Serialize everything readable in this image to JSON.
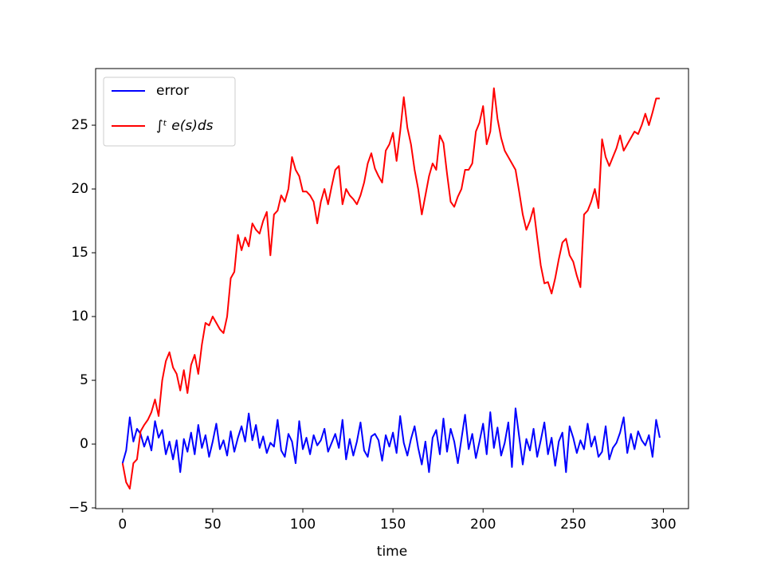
{
  "chart_data": {
    "type": "line",
    "xlabel": "time",
    "x": [
      0,
      2,
      4,
      6,
      8,
      10,
      12,
      14,
      16,
      18,
      20,
      22,
      24,
      26,
      28,
      30,
      32,
      34,
      36,
      38,
      40,
      42,
      44,
      46,
      48,
      50,
      52,
      54,
      56,
      58,
      60,
      62,
      64,
      66,
      68,
      70,
      72,
      74,
      76,
      78,
      80,
      82,
      84,
      86,
      88,
      90,
      92,
      94,
      96,
      98,
      100,
      102,
      104,
      106,
      108,
      110,
      112,
      114,
      116,
      118,
      120,
      122,
      124,
      126,
      128,
      130,
      132,
      134,
      136,
      138,
      140,
      142,
      144,
      146,
      148,
      150,
      152,
      154,
      156,
      158,
      160,
      162,
      164,
      166,
      168,
      170,
      172,
      174,
      176,
      178,
      180,
      182,
      184,
      186,
      188,
      190,
      192,
      194,
      196,
      198,
      200,
      202,
      204,
      206,
      208,
      210,
      212,
      214,
      216,
      218,
      220,
      222,
      224,
      226,
      228,
      230,
      232,
      234,
      236,
      238,
      240,
      242,
      244,
      246,
      248,
      250,
      252,
      254,
      256,
      258,
      260,
      262,
      264,
      266,
      268,
      270,
      272,
      274,
      276,
      278,
      280,
      282,
      284,
      286,
      288,
      290,
      292,
      294,
      296,
      298
    ],
    "series": [
      {
        "name": "error",
        "color": "#0000ff",
        "values": [
          -1.5,
          -0.5,
          2.1,
          0.2,
          1.2,
          0.8,
          -0.2,
          0.6,
          -0.5,
          1.8,
          0.5,
          1.1,
          -0.8,
          0.2,
          -1.2,
          0.3,
          -2.2,
          0.4,
          -0.6,
          0.9,
          -0.8,
          1.5,
          -0.3,
          0.7,
          -1.0,
          0.2,
          1.6,
          -0.4,
          0.3,
          -0.9,
          1.0,
          -0.6,
          0.5,
          1.4,
          0.2,
          2.4,
          0.3,
          1.5,
          -0.3,
          0.6,
          -0.7,
          0.1,
          -0.2,
          1.9,
          -0.5,
          -1.0,
          0.8,
          0.2,
          -1.5,
          1.8,
          -0.4,
          0.5,
          -0.8,
          0.7,
          -0.1,
          0.3,
          1.2,
          -0.6,
          0.1,
          0.8,
          -0.3,
          1.9,
          -1.2,
          0.4,
          -0.9,
          0.2,
          1.7,
          -0.5,
          -1.0,
          0.6,
          0.8,
          0.3,
          -1.3,
          0.7,
          -0.2,
          0.9,
          -0.7,
          2.2,
          0.1,
          -0.9,
          0.4,
          1.4,
          -0.3,
          -1.6,
          0.2,
          -2.2,
          0.5,
          1.1,
          -0.8,
          2.0,
          -0.6,
          1.2,
          0.2,
          -1.5,
          0.4,
          2.3,
          -0.4,
          0.8,
          -1.1,
          0.2,
          1.6,
          -0.8,
          2.5,
          -0.3,
          1.3,
          -0.9,
          0.1,
          1.7,
          -1.8,
          2.8,
          0.6,
          -1.6,
          0.4,
          -0.5,
          1.2,
          -1.0,
          0.3,
          1.7,
          -0.8,
          0.5,
          -1.7,
          0.2,
          0.9,
          -2.2,
          1.4,
          0.5,
          -0.7,
          0.3,
          -0.4,
          1.6,
          -0.2,
          0.6,
          -1.0,
          -0.6,
          1.4,
          -1.2,
          -0.3,
          0.1,
          0.9,
          2.1,
          -0.7,
          0.8,
          -0.4,
          1.0,
          0.3,
          -0.1,
          0.7,
          -1.0,
          1.9,
          0.5
        ]
      },
      {
        "name": "∫ᵗ e(s)ds",
        "color": "#ff0000",
        "values": [
          -1.5,
          -3.0,
          -3.5,
          -1.5,
          -1.2,
          1.0,
          1.5,
          1.9,
          2.5,
          3.5,
          2.2,
          5.0,
          6.5,
          7.2,
          6.0,
          5.5,
          4.2,
          5.8,
          4.0,
          6.2,
          7.0,
          5.5,
          7.8,
          9.5,
          9.3,
          10.0,
          9.5,
          9.0,
          8.7,
          10.0,
          13.0,
          13.5,
          16.4,
          15.2,
          16.2,
          15.5,
          17.3,
          16.8,
          16.5,
          17.5,
          18.2,
          14.8,
          18.0,
          18.3,
          19.5,
          19.0,
          20.0,
          22.5,
          21.5,
          21.0,
          19.8,
          19.8,
          19.5,
          19.0,
          17.3,
          19.0,
          20.0,
          18.8,
          20.2,
          21.5,
          21.8,
          18.8,
          20.0,
          19.5,
          19.2,
          18.8,
          19.5,
          20.5,
          22.0,
          22.8,
          21.6,
          21.0,
          20.5,
          23.0,
          23.5,
          24.4,
          22.2,
          24.5,
          27.2,
          24.8,
          23.5,
          21.5,
          20.0,
          18.0,
          19.5,
          21.0,
          22.0,
          21.5,
          24.2,
          23.6,
          21.2,
          19.0,
          18.6,
          19.4,
          20.0,
          21.5,
          21.5,
          22.0,
          24.5,
          25.2,
          26.5,
          23.5,
          24.5,
          27.9,
          25.5,
          24.0,
          23.0,
          22.5,
          22.0,
          21.5,
          19.8,
          18.0,
          16.8,
          17.5,
          18.5,
          16.2,
          14.0,
          12.6,
          12.7,
          11.8,
          13.0,
          14.5,
          15.8,
          16.1,
          14.8,
          14.3,
          13.2,
          12.3,
          18.0,
          18.3,
          19.0,
          20.0,
          18.5,
          23.9,
          22.5,
          21.8,
          22.5,
          23.2,
          24.2,
          23.0,
          23.5,
          24.0,
          24.5,
          24.3,
          25.0,
          25.9,
          25.0,
          26.0,
          27.1,
          27.1
        ]
      }
    ],
    "xlim": [
      -14.95,
      313.95
    ],
    "xticks": [
      0,
      50,
      100,
      150,
      200,
      250,
      300
    ],
    "ylim": [
      -5.06,
      29.44
    ],
    "yticks": [
      {
        "value": -5,
        "label": "−5"
      },
      0,
      5,
      10,
      15,
      20,
      25
    ],
    "legend": "upper left",
    "grid": false
  }
}
